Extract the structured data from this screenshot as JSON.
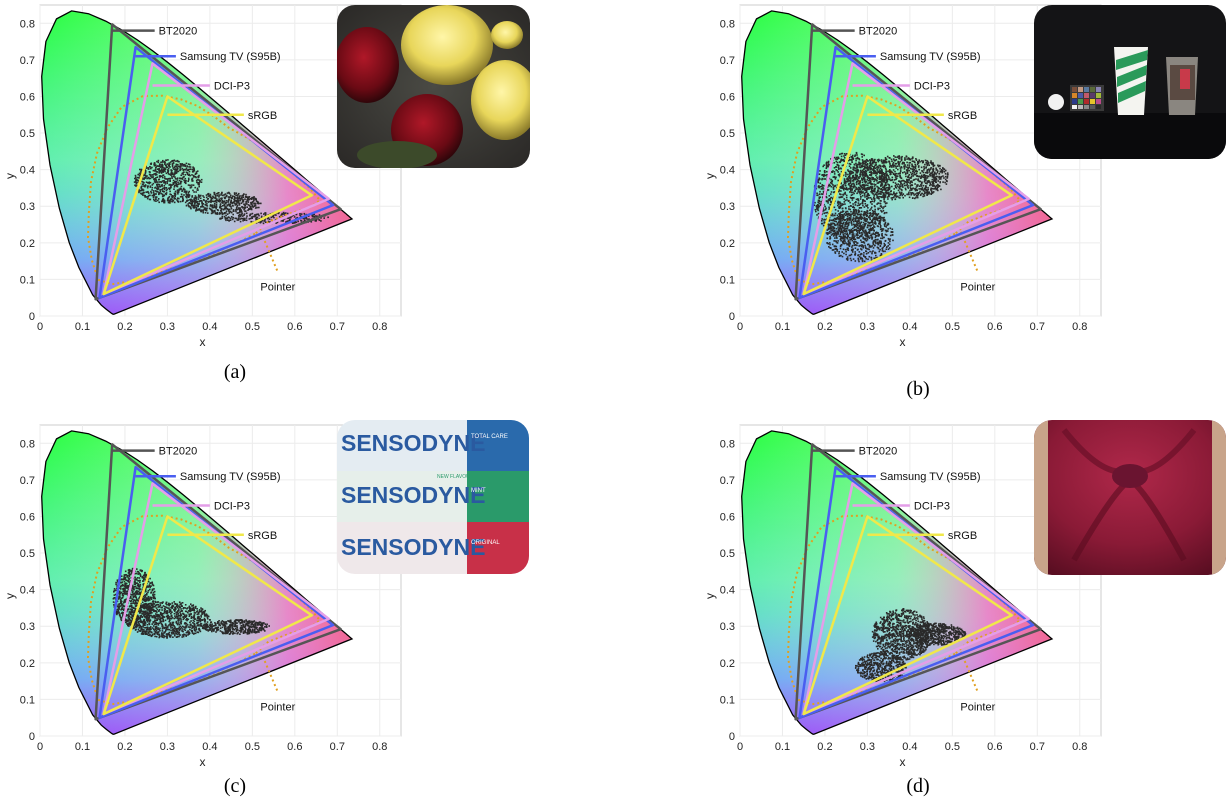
{
  "colors": {
    "bt2020": "#555555",
    "samsung": "#4a5ef0",
    "dcip3": "#e49ee8",
    "srgb": "#f0e84a",
    "pointer": "#e0a020",
    "cloud": "#2a2a2a"
  },
  "insets": [
    {
      "icon": "roses-photo-icon"
    },
    {
      "icon": "cups-colorchecker-photo-icon"
    },
    {
      "icon": "sensodyne-boxes-photo-icon",
      "brand_lines": [
        "SENSODYNE",
        "SENSODYNE",
        "SENSODYNE"
      ],
      "sub_lines": [
        "TOTAL CARE",
        "MINT",
        "ORIGINAL"
      ],
      "badge": "NEW FLAVOUR"
    },
    {
      "icon": "red-fabric-photo-icon"
    }
  ],
  "chart_data": [
    {
      "type": "scatter",
      "caption": "(a)",
      "xlabel": "x",
      "ylabel": "y",
      "xlim": [
        0,
        0.85
      ],
      "ylim": [
        0,
        0.85
      ],
      "xticks": [
        "0",
        "0.1",
        "0.2",
        "0.3",
        "0.4",
        "0.5",
        "0.6",
        "0.7",
        "0.8"
      ],
      "yticks": [
        "0",
        "0.1",
        "0.2",
        "0.3",
        "0.4",
        "0.5",
        "0.6",
        "0.7",
        "0.8"
      ],
      "grid": true,
      "gamuts": [
        {
          "name": "BT2020",
          "points": [
            [
              0.708,
              0.292
            ],
            [
              0.17,
              0.797
            ],
            [
              0.131,
              0.046
            ]
          ]
        },
        {
          "name": "Samsung TV (S95B)",
          "points": [
            [
              0.69,
              0.303
            ],
            [
              0.225,
              0.735
            ],
            [
              0.14,
              0.05
            ]
          ]
        },
        {
          "name": "DCI-P3",
          "points": [
            [
              0.68,
              0.32
            ],
            [
              0.265,
              0.69
            ],
            [
              0.15,
              0.06
            ]
          ]
        },
        {
          "name": "sRGB",
          "points": [
            [
              0.64,
              0.33
            ],
            [
              0.3,
              0.6
            ],
            [
              0.15,
              0.06
            ]
          ]
        }
      ],
      "pointer_label": "Pointer",
      "cloud": [
        {
          "cx": 0.3,
          "cy": 0.37,
          "rx": 0.08,
          "ry": 0.06,
          "n": 700
        },
        {
          "cx": 0.43,
          "cy": 0.31,
          "rx": 0.09,
          "ry": 0.03,
          "n": 500
        },
        {
          "cx": 0.55,
          "cy": 0.27,
          "rx": 0.13,
          "ry": 0.015,
          "n": 300
        }
      ]
    },
    {
      "type": "scatter",
      "caption": "(b)",
      "xlabel": "x",
      "ylabel": "y",
      "xlim": [
        0,
        0.85
      ],
      "ylim": [
        0,
        0.85
      ],
      "xticks": [
        "0",
        "0.1",
        "0.2",
        "0.3",
        "0.4",
        "0.5",
        "0.6",
        "0.7",
        "0.8"
      ],
      "yticks": [
        "0",
        "0.1",
        "0.2",
        "0.3",
        "0.4",
        "0.5",
        "0.6",
        "0.7",
        "0.8"
      ],
      "grid": true,
      "gamuts": [
        {
          "name": "BT2020",
          "points": [
            [
              0.708,
              0.292
            ],
            [
              0.17,
              0.797
            ],
            [
              0.131,
              0.046
            ]
          ]
        },
        {
          "name": "Samsung TV (S95B)",
          "points": [
            [
              0.69,
              0.303
            ],
            [
              0.225,
              0.735
            ],
            [
              0.14,
              0.05
            ]
          ]
        },
        {
          "name": "DCI-P3",
          "points": [
            [
              0.68,
              0.32
            ],
            [
              0.265,
              0.69
            ],
            [
              0.15,
              0.06
            ]
          ]
        },
        {
          "name": "sRGB",
          "points": [
            [
              0.64,
              0.33
            ],
            [
              0.3,
              0.6
            ],
            [
              0.15,
              0.06
            ]
          ]
        }
      ],
      "pointer_label": "Pointer",
      "cloud": [
        {
          "cx": 0.26,
          "cy": 0.33,
          "rx": 0.09,
          "ry": 0.12,
          "n": 1200
        },
        {
          "cx": 0.37,
          "cy": 0.38,
          "rx": 0.12,
          "ry": 0.06,
          "n": 1000
        },
        {
          "cx": 0.28,
          "cy": 0.22,
          "rx": 0.08,
          "ry": 0.07,
          "n": 600
        }
      ]
    },
    {
      "type": "scatter",
      "caption": "(c)",
      "xlabel": "x",
      "ylabel": "y",
      "xlim": [
        0,
        0.85
      ],
      "ylim": [
        0,
        0.85
      ],
      "xticks": [
        "0",
        "0.1",
        "0.2",
        "0.3",
        "0.4",
        "0.5",
        "0.6",
        "0.7",
        "0.8"
      ],
      "yticks": [
        "0",
        "0.1",
        "0.2",
        "0.3",
        "0.4",
        "0.5",
        "0.6",
        "0.7",
        "0.8"
      ],
      "grid": true,
      "gamuts": [
        {
          "name": "BT2020",
          "points": [
            [
              0.708,
              0.292
            ],
            [
              0.17,
              0.797
            ],
            [
              0.131,
              0.046
            ]
          ]
        },
        {
          "name": "Samsung TV (S95B)",
          "points": [
            [
              0.69,
              0.303
            ],
            [
              0.225,
              0.735
            ],
            [
              0.14,
              0.05
            ]
          ]
        },
        {
          "name": "DCI-P3",
          "points": [
            [
              0.68,
              0.32
            ],
            [
              0.265,
              0.69
            ],
            [
              0.15,
              0.06
            ]
          ]
        },
        {
          "name": "sRGB",
          "points": [
            [
              0.64,
              0.33
            ],
            [
              0.3,
              0.6
            ],
            [
              0.15,
              0.06
            ]
          ]
        }
      ],
      "pointer_label": "Pointer",
      "cloud": [
        {
          "cx": 0.22,
          "cy": 0.38,
          "rx": 0.05,
          "ry": 0.08,
          "n": 800
        },
        {
          "cx": 0.3,
          "cy": 0.32,
          "rx": 0.1,
          "ry": 0.05,
          "n": 900
        },
        {
          "cx": 0.46,
          "cy": 0.3,
          "rx": 0.08,
          "ry": 0.02,
          "n": 400
        }
      ]
    },
    {
      "type": "scatter",
      "caption": "(d)",
      "xlabel": "x",
      "ylabel": "y",
      "xlim": [
        0,
        0.85
      ],
      "ylim": [
        0,
        0.85
      ],
      "xticks": [
        "0",
        "0.1",
        "0.2",
        "0.3",
        "0.4",
        "0.5",
        "0.6",
        "0.7",
        "0.8"
      ],
      "yticks": [
        "0",
        "0.1",
        "0.2",
        "0.3",
        "0.4",
        "0.5",
        "0.6",
        "0.7",
        "0.8"
      ],
      "grid": true,
      "gamuts": [
        {
          "name": "BT2020",
          "points": [
            [
              0.708,
              0.292
            ],
            [
              0.17,
              0.797
            ],
            [
              0.131,
              0.046
            ]
          ]
        },
        {
          "name": "Samsung TV (S95B)",
          "points": [
            [
              0.69,
              0.303
            ],
            [
              0.225,
              0.735
            ],
            [
              0.14,
              0.05
            ]
          ]
        },
        {
          "name": "DCI-P3",
          "points": [
            [
              0.68,
              0.32
            ],
            [
              0.265,
              0.69
            ],
            [
              0.15,
              0.06
            ]
          ]
        },
        {
          "name": "sRGB",
          "points": [
            [
              0.64,
              0.33
            ],
            [
              0.3,
              0.6
            ],
            [
              0.15,
              0.06
            ]
          ]
        }
      ],
      "pointer_label": "Pointer",
      "cloud": [
        {
          "cx": 0.38,
          "cy": 0.28,
          "rx": 0.07,
          "ry": 0.07,
          "n": 900
        },
        {
          "cx": 0.46,
          "cy": 0.28,
          "rx": 0.07,
          "ry": 0.03,
          "n": 500
        },
        {
          "cx": 0.33,
          "cy": 0.19,
          "rx": 0.06,
          "ry": 0.04,
          "n": 500
        }
      ]
    }
  ]
}
